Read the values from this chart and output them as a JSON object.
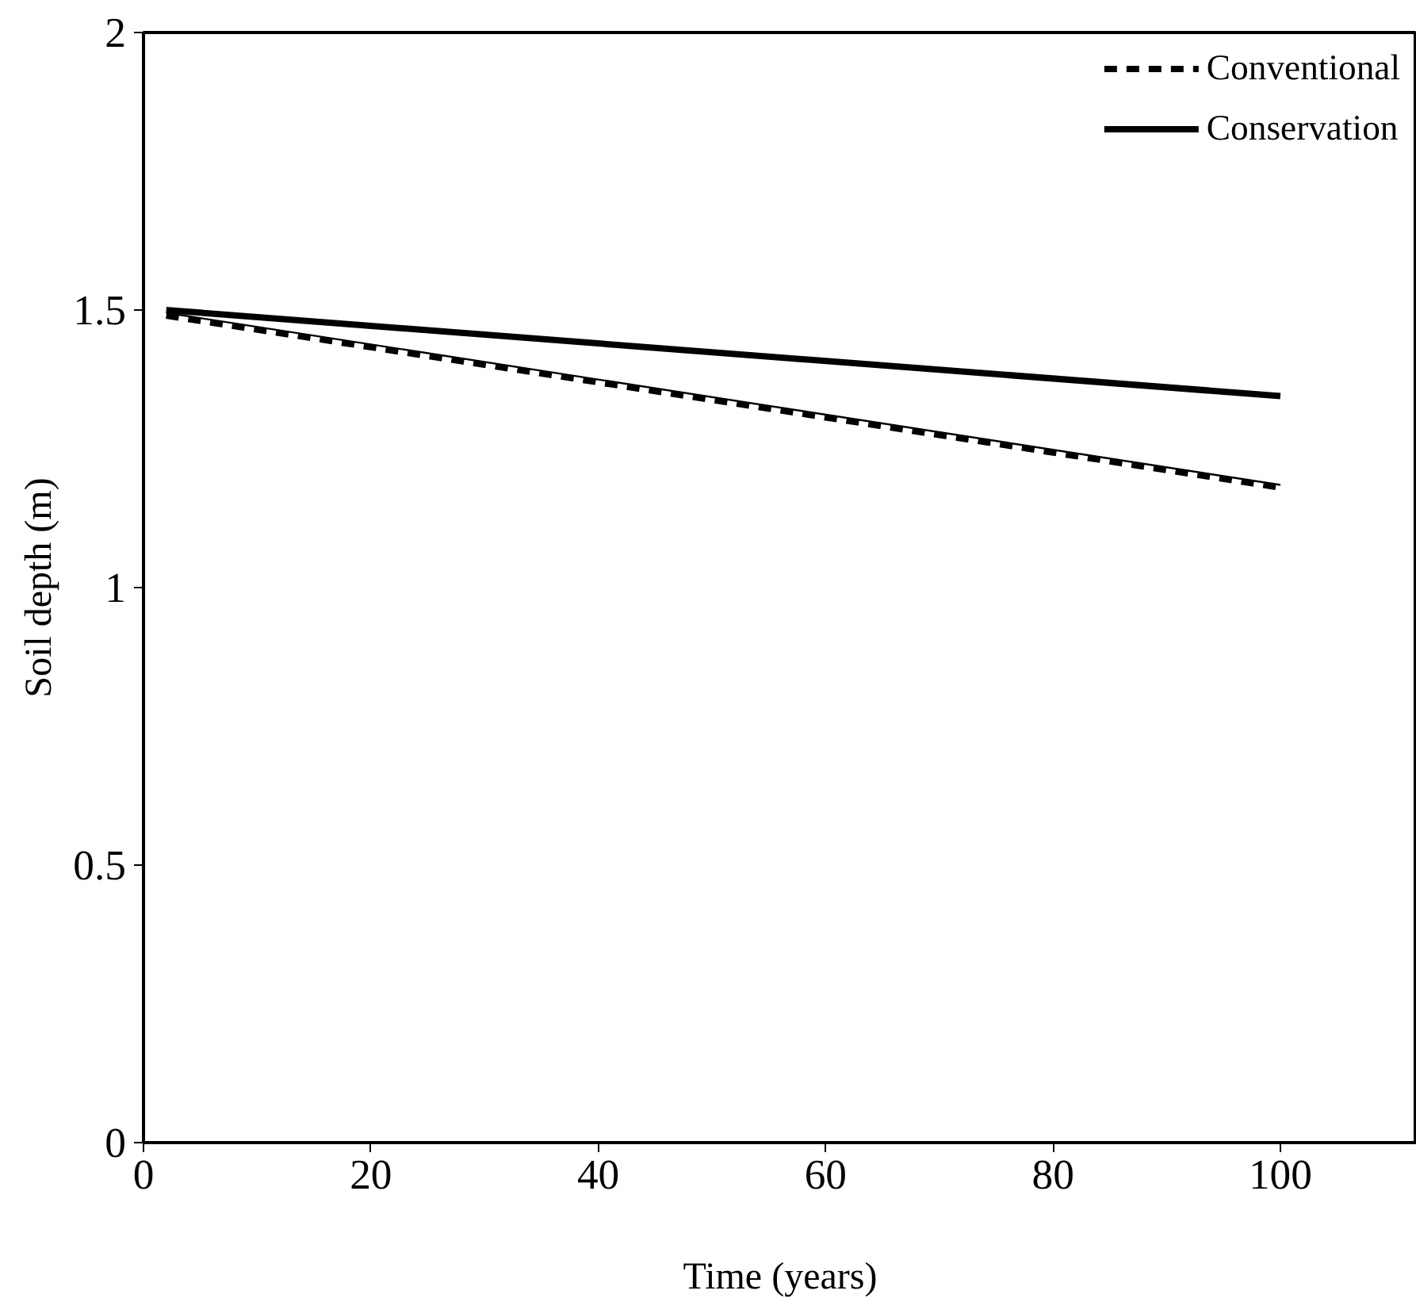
{
  "chart_data": {
    "type": "line",
    "xlabel": "Time (years)",
    "ylabel": "Soil depth (m)",
    "xlim": [
      0,
      112
    ],
    "ylim": [
      0,
      2
    ],
    "xticks": [
      0,
      20,
      40,
      60,
      80,
      100
    ],
    "yticks": [
      0,
      0.5,
      1,
      1.5,
      2
    ],
    "grid": false,
    "legend": "top right",
    "marker": "none",
    "x": [
      2,
      100
    ],
    "series": [
      {
        "name": "Conventional",
        "color": "#000000",
        "line_style": "dashed",
        "values": [
          1.49,
          1.18
        ]
      },
      {
        "name": "Conservation",
        "color": "#000000",
        "line_style": "solid",
        "values": [
          1.5,
          1.345
        ]
      },
      {
        "color": "#000000",
        "line_style": "solid",
        "values": [
          1.495,
          1.185
        ]
      }
    ]
  }
}
